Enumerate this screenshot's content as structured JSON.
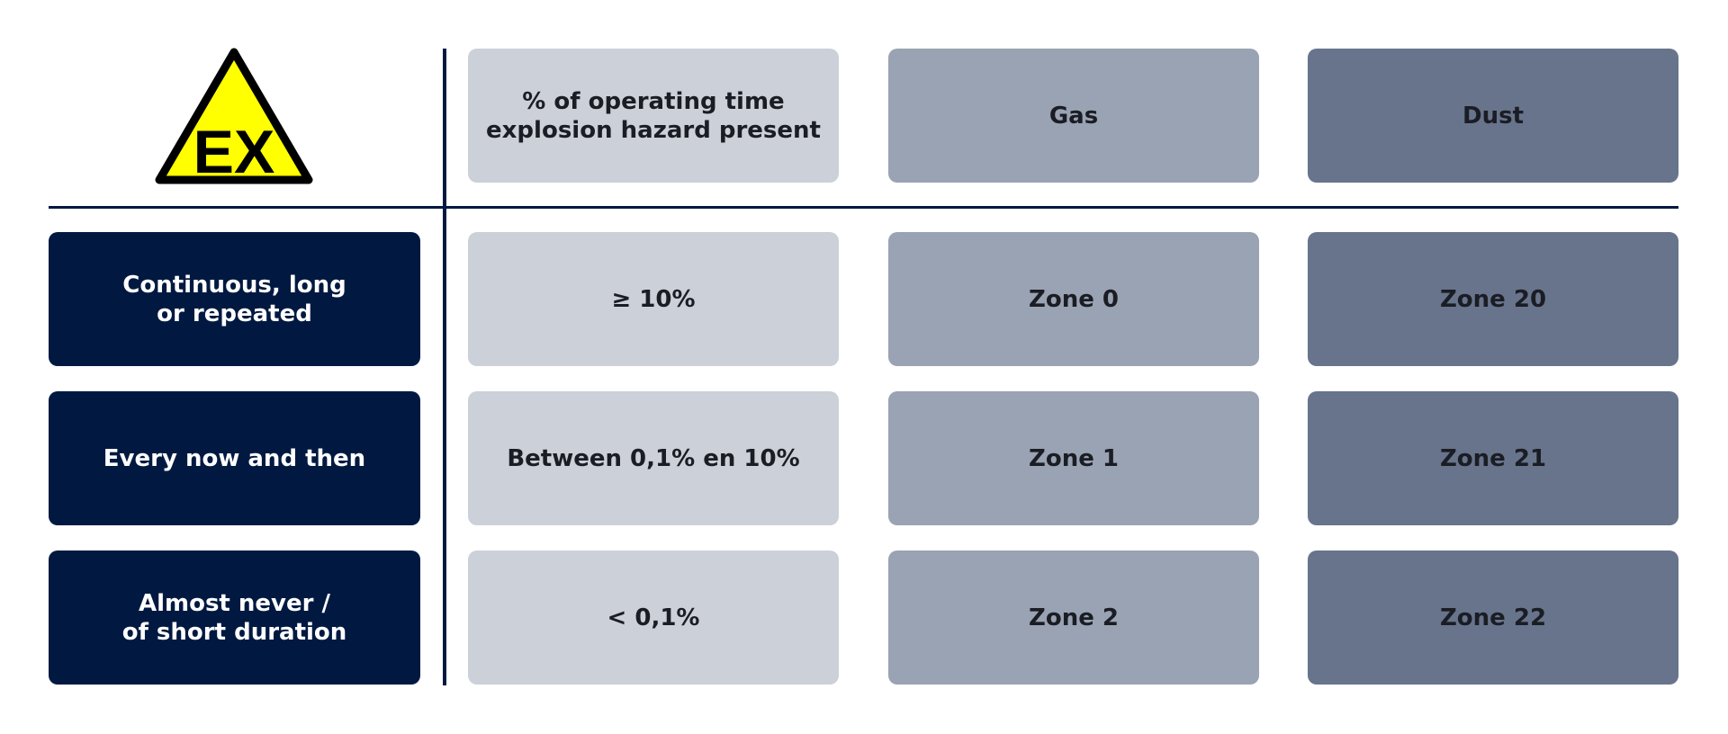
{
  "icon_label": "EX",
  "table": {
    "header": [
      "% of operating time\nexplosion hazard present",
      "Gas",
      "Dust"
    ],
    "rows": [
      [
        "Continuous, long\nor repeated",
        "≥ 10%",
        "Zone 0",
        "Zone 20"
      ],
      [
        "Every now and then",
        "Between 0,1% en 10%",
        "Zone 1",
        "Zone 21"
      ],
      [
        "Almost never /\nof short duration",
        "< 0,1%",
        "Zone 2",
        "Zone 22"
      ]
    ]
  }
}
